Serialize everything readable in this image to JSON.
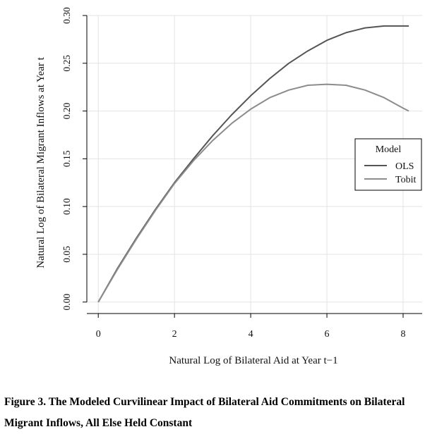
{
  "chart_data": {
    "type": "line",
    "xlabel": "Natural Log of Bilateral Aid at Year t−1",
    "ylabel": "Natural Log of Bilateral Migrant Inflows at Year t",
    "xlim": [
      -0.3,
      8.5
    ],
    "ylim": [
      -0.012,
      0.3
    ],
    "x_ticks": [
      0,
      2,
      4,
      6,
      8
    ],
    "y_ticks": [
      0.0,
      0.05,
      0.1,
      0.15,
      0.2,
      0.25,
      0.3
    ],
    "x_tick_labels": [
      "0",
      "2",
      "4",
      "6",
      "8"
    ],
    "y_tick_labels": [
      "0.00",
      "0.05",
      "0.10",
      "0.15",
      "0.20",
      "0.25",
      "0.30"
    ],
    "grid": true,
    "legend": {
      "title": "Model",
      "placement": "right"
    },
    "series": [
      {
        "name": "OLS",
        "color": "#555555",
        "x": [
          0,
          0.5,
          1,
          1.5,
          2,
          2.5,
          3,
          3.5,
          4,
          4.5,
          5,
          5.5,
          6,
          6.5,
          7,
          7.5,
          8,
          8.15
        ],
        "y": [
          0.0,
          0.035,
          0.067,
          0.097,
          0.125,
          0.15,
          0.174,
          0.196,
          0.216,
          0.234,
          0.25,
          0.263,
          0.274,
          0.282,
          0.287,
          0.289,
          0.289,
          0.289
        ]
      },
      {
        "name": "Tobit",
        "color": "#8c8c8c",
        "x": [
          0,
          0.5,
          1,
          1.5,
          2,
          2.5,
          3,
          3.5,
          4,
          4.5,
          5,
          5.5,
          6,
          6.5,
          7,
          7.5,
          8,
          8.15
        ],
        "y": [
          0.0,
          0.034,
          0.066,
          0.096,
          0.124,
          0.148,
          0.169,
          0.187,
          0.202,
          0.214,
          0.222,
          0.227,
          0.228,
          0.227,
          0.222,
          0.214,
          0.203,
          0.2
        ]
      }
    ]
  },
  "caption": {
    "line1": "Figure 3. The Modeled Curvilinear Impact of Bilateral Aid Commitments on Bilateral",
    "line2": "Migrant Inflows, All Else Held Constant"
  }
}
